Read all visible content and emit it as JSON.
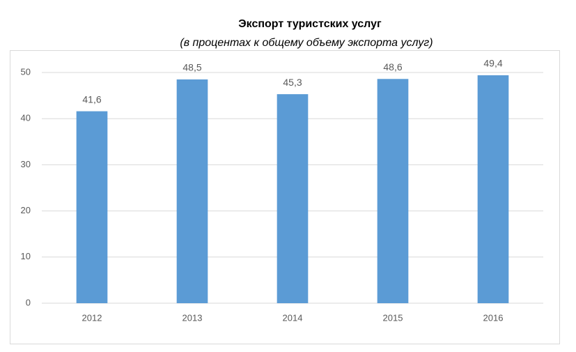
{
  "chart_data": {
    "type": "bar",
    "title": "Экспорт туристских услуг",
    "subtitle": "(в процентах к общему объему экспорта услуг)",
    "categories": [
      "2012",
      "2013",
      "2014",
      "2015",
      "2016"
    ],
    "values": [
      41.6,
      48.5,
      45.3,
      48.6,
      49.4
    ],
    "value_labels": [
      "41,6",
      "48,5",
      "45,3",
      "48,6",
      "49,4"
    ],
    "color": "#5b9bd5",
    "ylim": [
      0,
      50
    ],
    "yticks": [
      0,
      10,
      20,
      30,
      40,
      50
    ],
    "grid": true
  }
}
